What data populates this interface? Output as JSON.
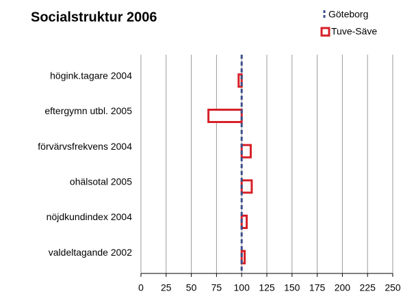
{
  "chart_data": {
    "type": "bar",
    "orientation": "horizontal",
    "title": "Socialstruktur 2006",
    "categories": [
      "högink.tagare 2004",
      "eftergymn utbl. 2005",
      "förvärvsfrekvens 2004",
      "ohälsotal 2005",
      "nöjdkundindex 2004",
      "valdeltagande 2002"
    ],
    "reference": {
      "name": "Göteborg",
      "value": 100,
      "color": "#3a4f8a"
    },
    "series": [
      {
        "name": "Tuve-Säve",
        "color": "#d62027",
        "values": [
          97,
          67,
          109,
          110,
          105,
          103
        ]
      }
    ],
    "xlim": [
      0,
      250
    ],
    "xticks": [
      0,
      25,
      50,
      75,
      100,
      125,
      150,
      175,
      200,
      225,
      250
    ],
    "grid": true,
    "legend": "top-right"
  }
}
